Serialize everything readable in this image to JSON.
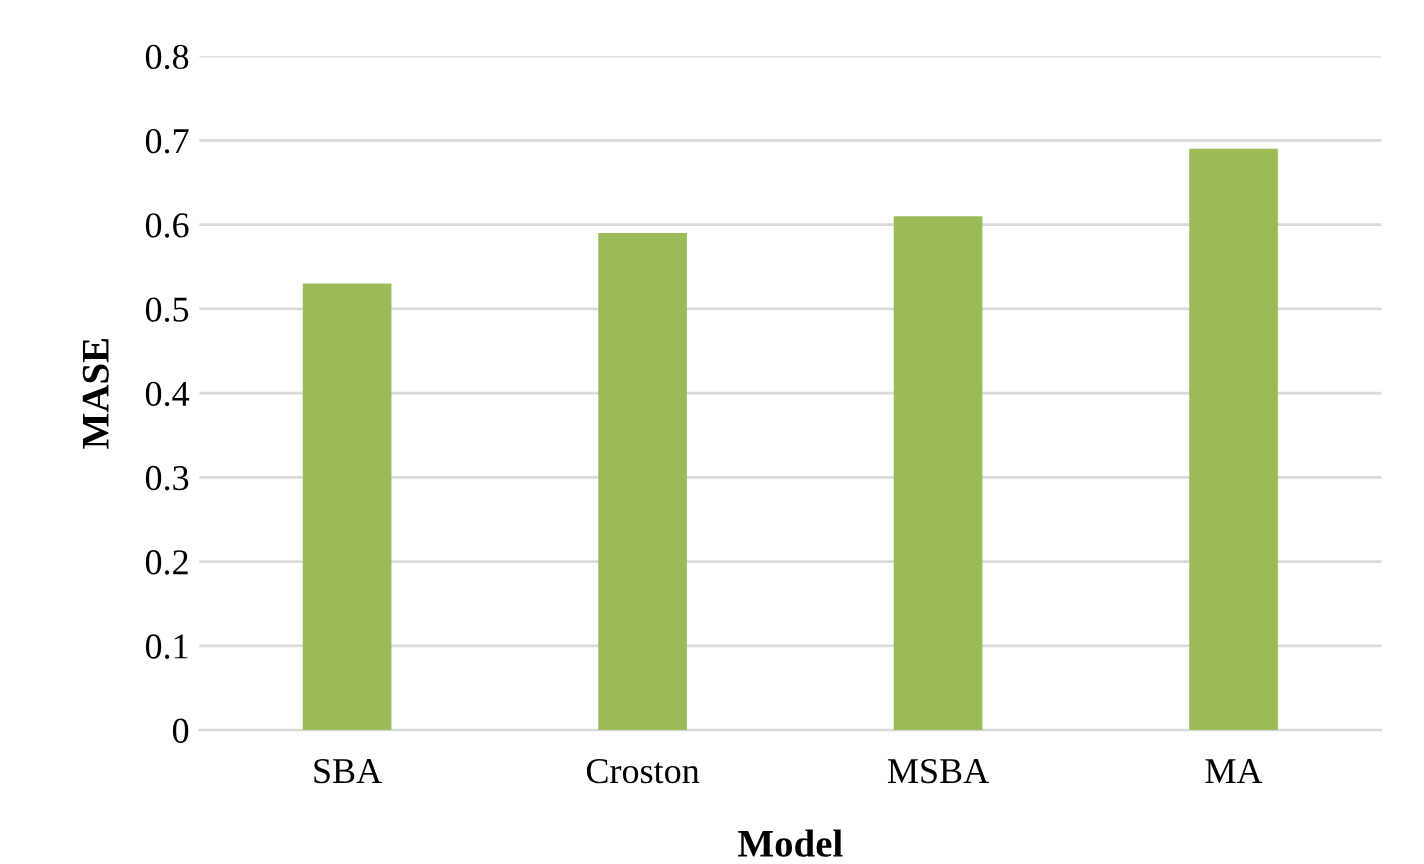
{
  "chart_data": {
    "type": "bar",
    "xlabel": "Model",
    "ylabel": "MASE",
    "categories": [
      "SBA",
      "Croston",
      "MSBA",
      "MA"
    ],
    "values": [
      0.53,
      0.59,
      0.61,
      0.69
    ],
    "color": "#9bbb59",
    "ylim": [
      0,
      0.8
    ],
    "yticks": [
      0,
      0.1,
      0.2,
      0.3,
      0.4,
      0.5,
      0.6,
      0.7,
      0.8
    ],
    "grid": "y",
    "legend": false
  }
}
